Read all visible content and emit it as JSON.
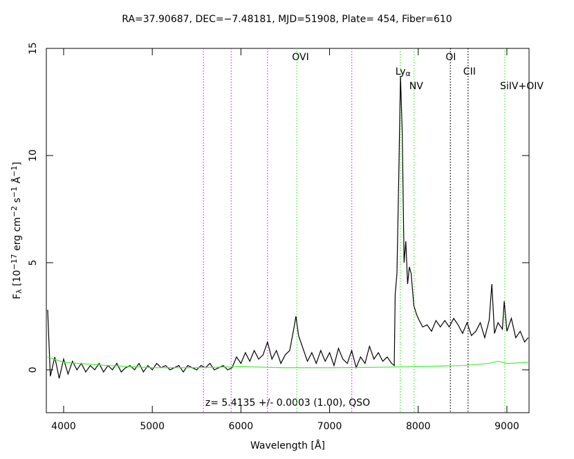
{
  "chart_data": {
    "type": "line",
    "title": "RA=37.90687, DEC=−7.48181, MJD=51908, Plate= 454, Fiber=610",
    "xlabel": "Wavelength [Å]",
    "ylabel": [
      {
        "text": "F"
      },
      {
        "text": "λ",
        "sub": true
      },
      {
        "text": " [10"
      },
      {
        "text": "−17",
        "sup": true
      },
      {
        "text": " erg cm"
      },
      {
        "text": "−2",
        "sup": true
      },
      {
        "text": " s"
      },
      {
        "text": "−1",
        "sup": true
      },
      {
        "text": " Å"
      },
      {
        "text": "−1",
        "sup": true
      },
      {
        "text": "]"
      }
    ],
    "annotation": "z= 5.4135 +/- 0.0003 (1.00), QSO",
    "xlim": [
      3805,
      9250
    ],
    "ylim": [
      -2,
      15
    ],
    "xticks": [
      4000,
      5000,
      6000,
      7000,
      8000,
      9000
    ],
    "yticks": [
      0,
      5,
      10,
      15
    ],
    "series": [
      {
        "color": "#000000",
        "x": [
          3820,
          3850,
          3900,
          3950,
          4000,
          4050,
          4100,
          4150,
          4200,
          4250,
          4300,
          4350,
          4400,
          4450,
          4500,
          4550,
          4600,
          4650,
          4700,
          4750,
          4800,
          4850,
          4900,
          4950,
          5000,
          5050,
          5100,
          5150,
          5200,
          5250,
          5300,
          5350,
          5400,
          5450,
          5500,
          5550,
          5600,
          5650,
          5700,
          5750,
          5800,
          5850,
          5900,
          5950,
          6000,
          6050,
          6100,
          6150,
          6200,
          6250,
          6300,
          6350,
          6400,
          6450,
          6500,
          6550,
          6600,
          6620,
          6650,
          6700,
          6750,
          6800,
          6850,
          6900,
          6950,
          7000,
          7050,
          7100,
          7150,
          7200,
          7250,
          7300,
          7350,
          7400,
          7450,
          7500,
          7550,
          7600,
          7650,
          7700,
          7730,
          7740,
          7760,
          7780,
          7800,
          7820,
          7840,
          7860,
          7880,
          7900,
          7920,
          7950,
          7980,
          8000,
          8050,
          8100,
          8150,
          8200,
          8250,
          8300,
          8350,
          8400,
          8450,
          8500,
          8550,
          8600,
          8650,
          8700,
          8750,
          8800,
          8830,
          8860,
          8900,
          8950,
          8970,
          9000,
          9050,
          9100,
          9150,
          9200,
          9240
        ],
        "values": [
          2.8,
          -0.3,
          0.6,
          -0.4,
          0.5,
          -0.2,
          0.4,
          0.0,
          0.3,
          -0.1,
          0.2,
          0.0,
          0.3,
          -0.1,
          0.2,
          0.0,
          0.3,
          -0.1,
          0.1,
          0.2,
          0.0,
          0.3,
          -0.1,
          0.2,
          0.0,
          0.3,
          0.1,
          0.2,
          0.0,
          0.1,
          0.2,
          -0.1,
          0.2,
          0.1,
          0.0,
          0.2,
          0.1,
          0.3,
          0.0,
          0.1,
          0.2,
          0.0,
          0.1,
          0.6,
          0.3,
          0.8,
          0.4,
          0.9,
          0.5,
          0.7,
          1.3,
          0.5,
          0.9,
          0.3,
          0.7,
          0.9,
          2.0,
          2.5,
          1.6,
          1.0,
          0.4,
          0.8,
          0.3,
          0.9,
          0.4,
          0.8,
          0.2,
          1.0,
          0.5,
          0.3,
          0.9,
          0.1,
          0.6,
          0.3,
          1.1,
          0.5,
          0.8,
          0.4,
          0.6,
          0.3,
          0.2,
          3.5,
          4.5,
          9.0,
          13.7,
          11.0,
          5.0,
          6.0,
          4.0,
          4.8,
          4.5,
          3.0,
          2.6,
          2.4,
          2.0,
          2.1,
          1.8,
          2.3,
          2.0,
          2.3,
          2.0,
          2.4,
          2.1,
          1.7,
          2.2,
          1.6,
          1.8,
          2.2,
          1.5,
          2.3,
          4.0,
          1.7,
          2.2,
          1.9,
          3.2,
          1.8,
          2.4,
          1.5,
          1.8,
          1.3,
          1.5
        ]
      },
      {
        "color": "#44ee33",
        "x": [
          3820,
          4000,
          4500,
          5000,
          5500,
          6000,
          6500,
          7000,
          7500,
          8000,
          8500,
          8800,
          8900,
          9000,
          9240
        ],
        "values": [
          0.6,
          0.35,
          0.2,
          0.1,
          0.1,
          0.15,
          0.1,
          0.1,
          0.12,
          0.15,
          0.2,
          0.3,
          0.4,
          0.3,
          0.35
        ]
      }
    ],
    "lines": [
      {
        "x": 5577,
        "color": "#c040ff"
      },
      {
        "x": 5890,
        "color": "#c040ff"
      },
      {
        "x": 6300,
        "color": "#c040ff"
      },
      {
        "x": 7250,
        "color": "#c040ff"
      },
      {
        "x": 6631,
        "color": "#44ee33",
        "label": [
          {
            "text": "OVI"
          }
        ]
      },
      {
        "x": 7797,
        "color": "#44ee33",
        "label": [
          {
            "text": "Ly"
          },
          {
            "text": "α",
            "sub": true
          }
        ]
      },
      {
        "x": 7953,
        "color": "#44ee33",
        "label": [
          {
            "text": "NV"
          }
        ]
      },
      {
        "x": 8363,
        "color": "#000000",
        "label": [
          {
            "text": "OI"
          }
        ]
      },
      {
        "x": 8562,
        "color": "#000000",
        "label": [
          {
            "text": "CII"
          }
        ]
      },
      {
        "x": 8977,
        "color": "#44ee33",
        "label": [
          {
            "text": "SiIV+OIV"
          }
        ]
      }
    ]
  }
}
